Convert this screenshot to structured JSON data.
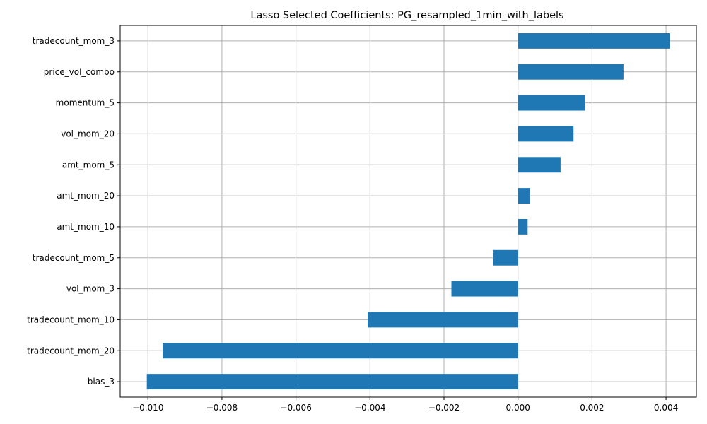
{
  "chart_data": {
    "type": "bar",
    "orientation": "horizontal",
    "title": "Lasso Selected Coefficients: PG_resampled_1min_with_labels",
    "xlabel": "",
    "ylabel": "",
    "categories": [
      "tradecount_mom_3",
      "price_vol_combo",
      "momentum_5",
      "vol_mom_20",
      "amt_mom_5",
      "amt_mom_20",
      "amt_mom_10",
      "tradecount_mom_5",
      "vol_mom_3",
      "tradecount_mom_10",
      "tradecount_mom_20",
      "bias_3"
    ],
    "values": [
      0.0041,
      0.00285,
      0.00182,
      0.0015,
      0.00115,
      0.00033,
      0.00026,
      -0.00068,
      -0.0018,
      -0.00406,
      -0.0096,
      -0.01003
    ],
    "xlim": [
      -0.01075,
      0.00482
    ],
    "xticks": [
      -0.01,
      -0.008,
      -0.006,
      -0.004,
      -0.002,
      0.0,
      0.002,
      0.004
    ],
    "xtick_labels": [
      "−0.010",
      "−0.008",
      "−0.006",
      "−0.004",
      "−0.002",
      "0.000",
      "0.002",
      "0.004"
    ],
    "grid": true,
    "bar_color": "#1f77b4"
  }
}
